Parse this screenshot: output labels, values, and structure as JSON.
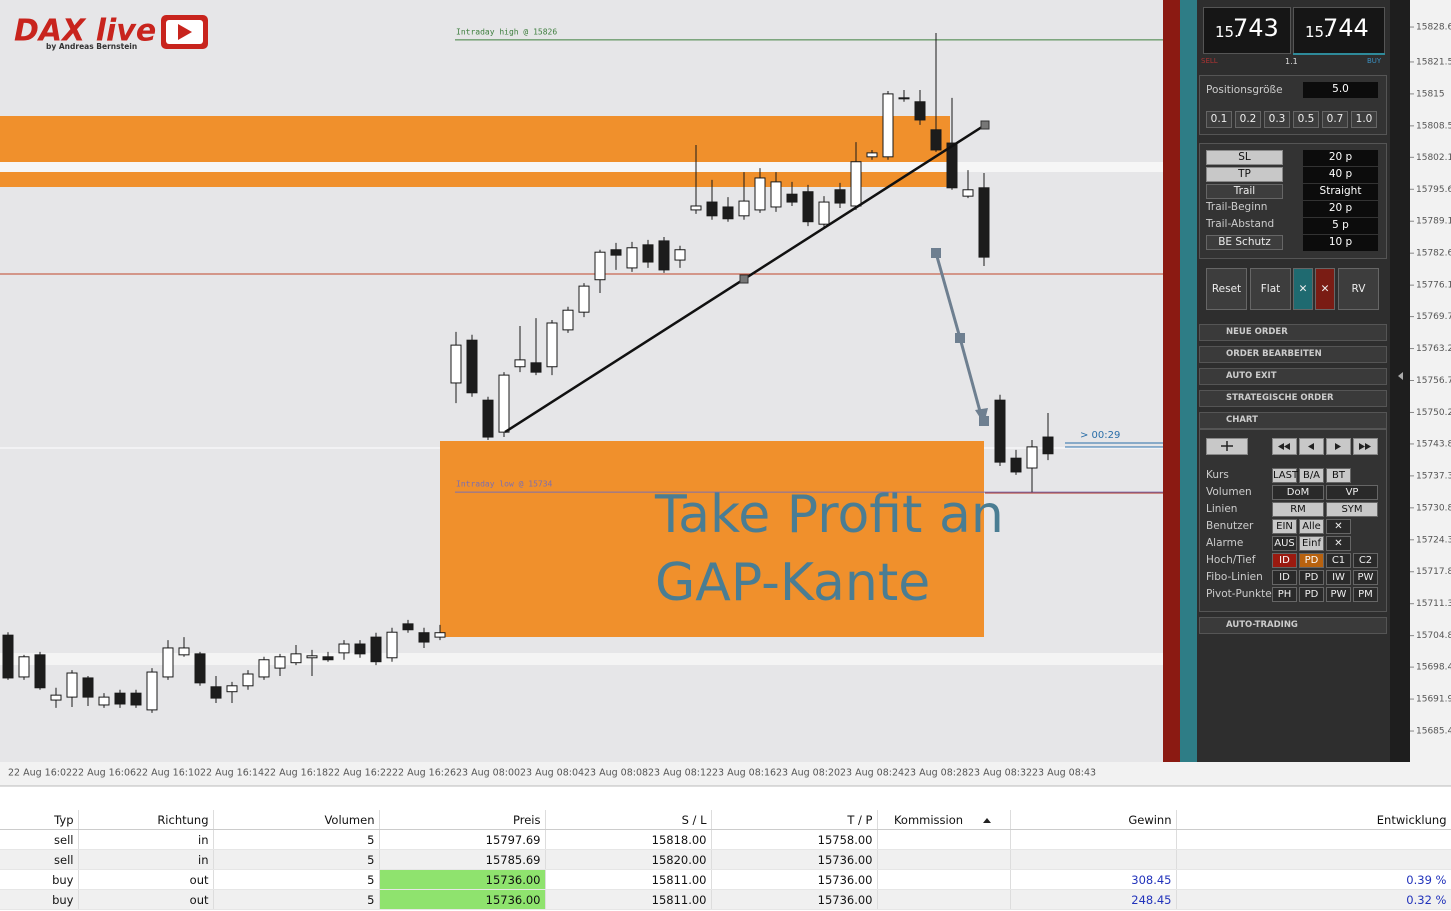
{
  "logo": {
    "title": "DAX live",
    "subtitle": "by Andreas Bernstein"
  },
  "chart_data": {
    "type": "candlestick",
    "categories": [
      "22 Aug 16:02",
      null,
      null,
      null,
      "22 Aug 16:06",
      null,
      null,
      null,
      "22 Aug 16:10",
      null,
      null,
      null,
      "22 Aug 16:14",
      null,
      null,
      null,
      "22 Aug 16:18",
      null,
      null,
      null,
      "22 Aug 16:22",
      null,
      null,
      null,
      "22 Aug 16:26",
      null,
      null,
      null,
      "23 Aug 08:00",
      null,
      null,
      null,
      "23 Aug 08:04",
      null,
      null,
      null,
      "23 Aug 08:08",
      null,
      null,
      null,
      "23 Aug 08:12",
      null,
      null,
      null,
      "23 Aug 08:16",
      null,
      null,
      null,
      "23 Aug 08:20",
      null,
      null,
      null,
      "23 Aug 08:24",
      null,
      null,
      null,
      "23 Aug 08:28",
      null,
      null,
      null,
      "23 Aug 08:32",
      null,
      null,
      null,
      "23 Aug 08:43",
      null
    ],
    "open": [
      15704.9,
      15696.4,
      15700.9,
      15691.7,
      15692.3,
      15696.2,
      15690.7,
      15693.1,
      15693.1,
      15689.7,
      15696.4,
      15700.9,
      15701.1,
      15694.4,
      15693.4,
      15694.6,
      15696.4,
      15698.2,
      15699.3,
      15700.3,
      15700.5,
      15701.3,
      15703.1,
      15704.5,
      15700.3,
      15707.2,
      15705.4,
      15704.5,
      15756.2,
      15764.9,
      15752.7,
      15746.2,
      15759.5,
      15760.3,
      15759.5,
      15767.0,
      15770.6,
      15777.2,
      15783.3,
      15779.6,
      15784.3,
      15785.1,
      15781.2,
      15791.4,
      15793.0,
      15792.0,
      15790.2,
      15791.4,
      15792.0,
      15794.6,
      15795.1,
      15788.5,
      15795.5,
      15792.2,
      15802.2,
      15802.2,
      15814.0,
      15813.4,
      15807.7,
      15805.0,
      15794.2,
      15795.9,
      15752.7,
      15740.9,
      15738.9,
      15745.2
    ],
    "high": [
      15705.5,
      15700.9,
      15701.5,
      15694.2,
      15697.8,
      15696.6,
      15693.1,
      15693.8,
      15693.8,
      15698.2,
      15703.9,
      15704.5,
      15701.5,
      15696.6,
      15695.4,
      15697.8,
      15700.5,
      15701.1,
      15702.9,
      15701.9,
      15701.5,
      15703.9,
      15703.9,
      15705.4,
      15706.4,
      15708.0,
      15706.4,
      15707.0,
      15766.6,
      15766.0,
      15753.4,
      15758.4,
      15767.8,
      15769.4,
      15769.0,
      15771.7,
      15776.5,
      15783.3,
      15784.7,
      15784.9,
      15785.3,
      15785.9,
      15784.1,
      15804.6,
      15797.5,
      15794.0,
      15799.1,
      15799.9,
      15799.1,
      15797.1,
      15796.5,
      15794.2,
      15796.9,
      15805.2,
      15803.6,
      15815.6,
      15815.8,
      15815.8,
      15827.4,
      15814.2,
      15799.5,
      15798.9,
      15753.8,
      15742.6,
      15744.6,
      15750.1
    ],
    "low": [
      15695.8,
      15695.8,
      15693.8,
      15690.1,
      15690.3,
      15690.5,
      15690.1,
      15690.1,
      15690.1,
      15689.1,
      15695.8,
      15700.5,
      15694.6,
      15691.1,
      15691.1,
      15693.8,
      15695.8,
      15696.6,
      15698.8,
      15696.6,
      15699.5,
      15699.9,
      15700.3,
      15698.8,
      15699.5,
      15705.4,
      15702.3,
      15703.9,
      15752.1,
      15753.4,
      15744.6,
      15745.2,
      15758.4,
      15757.8,
      15757.8,
      15766.4,
      15769.6,
      15774.5,
      15779.2,
      15778.8,
      15779.6,
      15778.6,
      15779.6,
      15790.6,
      15789.4,
      15789.0,
      15789.4,
      15790.8,
      15791.0,
      15792.2,
      15788.1,
      15787.7,
      15791.8,
      15791.4,
      15801.6,
      15801.6,
      15813.4,
      15808.7,
      15803.2,
      15795.5,
      15793.8,
      15780.0,
      15739.3,
      15737.5,
      15734.0,
      15740.5
    ],
    "close": [
      15696.2,
      15700.5,
      15694.2,
      15692.7,
      15697.2,
      15692.3,
      15692.3,
      15690.9,
      15690.7,
      15697.4,
      15702.3,
      15702.3,
      15695.2,
      15692.1,
      15694.6,
      15697.0,
      15699.9,
      15700.5,
      15701.1,
      15700.7,
      15699.9,
      15703.1,
      15701.1,
      15699.5,
      15705.5,
      15706.0,
      15703.5,
      15705.4,
      15763.9,
      15754.2,
      15745.2,
      15757.8,
      15760.9,
      15758.4,
      15768.4,
      15771.0,
      15775.9,
      15782.8,
      15782.2,
      15783.7,
      15780.8,
      15779.2,
      15783.3,
      15792.2,
      15790.2,
      15789.6,
      15793.2,
      15797.9,
      15797.1,
      15793.0,
      15789.0,
      15793.0,
      15792.8,
      15801.2,
      15803.0,
      15815.0,
      15814.2,
      15809.7,
      15803.6,
      15795.9,
      15795.5,
      15781.8,
      15740.1,
      15738.1,
      15743.2,
      15741.8
    ],
    "ylim": [
      15679.1,
      15834.1
    ],
    "yticks": [
      15828.6,
      15821.5,
      15815.0,
      15808.5,
      15802.1,
      15795.6,
      15789.1,
      15782.6,
      15776.1,
      15769.7,
      15763.2,
      15756.7,
      15750.2,
      15743.8,
      15737.3,
      15730.8,
      15724.3,
      15717.8,
      15711.3,
      15704.8,
      15698.4,
      15691.9,
      15685.4
    ],
    "levels": [
      {
        "label": "Intraday high @ 15826",
        "value": 15826,
        "color": "#3f7f3f"
      },
      {
        "label": "Intraday low @ 15734",
        "value": 15734,
        "color": "#7b6fb0"
      }
    ],
    "annotation": [
      "Take Profit an",
      "GAP-Kante"
    ],
    "countdown": "> 00:29"
  },
  "panel": {
    "bid": {
      "prefix": "15.",
      "main": "743"
    },
    "ask": {
      "prefix": "15.",
      "main": "744"
    },
    "spread": "1.1",
    "sell_label": "SELL",
    "buy_label": "BUY",
    "position_label": "Positionsgröße",
    "position_value": "5.0",
    "sizes": [
      "0.1",
      "0.2",
      "0.3",
      "0.5",
      "0.7",
      "1.0"
    ],
    "settings": [
      [
        "SL",
        "20 p"
      ],
      [
        "TP",
        "40 p"
      ],
      [
        "Trail",
        "Straight"
      ],
      [
        "Trail-Beginn",
        "20 p"
      ],
      [
        "Trail-Abstand",
        "5 p"
      ],
      [
        "BE Schutz",
        "10 p"
      ]
    ],
    "actions": [
      "Reset",
      "Flat",
      "✕",
      "✕",
      "RV"
    ],
    "sections": [
      "NEUE ORDER",
      "ORDER BEARBEITEN",
      "AUTO EXIT",
      "STRATEGISCHE ORDER",
      "CHART"
    ],
    "chart_settings": [
      {
        "label": "Kurs",
        "buttons": [
          "LAST",
          "B/A",
          "BT"
        ]
      },
      {
        "label": "Volumen",
        "buttons": [
          "DoM",
          "VP"
        ]
      },
      {
        "label": "Linien",
        "buttons": [
          "RM",
          "SYM"
        ]
      },
      {
        "label": "Benutzer",
        "buttons": [
          "EIN",
          "Alle",
          "✕"
        ]
      },
      {
        "label": "Alarme",
        "buttons": [
          "AUS",
          "Einf",
          "✕"
        ]
      },
      {
        "label": "Hoch/Tief",
        "buttons": [
          "ID",
          "PD",
          "C1",
          "C2"
        ]
      },
      {
        "label": "Fibo-Linien",
        "buttons": [
          "ID",
          "PD",
          "IW",
          "PW"
        ]
      },
      {
        "label": "Pivot-Punkte",
        "buttons": [
          "PH",
          "PD",
          "PW",
          "PM"
        ]
      }
    ],
    "auto_trading": "AUTO-TRADING"
  },
  "table": {
    "headers": [
      "Typ",
      "Richtung",
      "Volumen",
      "Preis",
      "S / L",
      "T / P",
      "Kommission",
      "Gewinn",
      "Entwicklung"
    ],
    "rows": [
      [
        "sell",
        "in",
        "5",
        "15797.69",
        "15818.00",
        "15758.00",
        null,
        null,
        null
      ],
      [
        "sell",
        "in",
        "5",
        "15785.69",
        "15820.00",
        "15736.00",
        null,
        null,
        null
      ],
      [
        "buy",
        "out",
        "5",
        "15736.00",
        "15811.00",
        "15736.00",
        null,
        "308.45",
        "0.39 %"
      ],
      [
        "buy",
        "out",
        "5",
        "15736.00",
        "15811.00",
        "15736.00",
        null,
        "248.45",
        "0.32 %"
      ]
    ]
  }
}
